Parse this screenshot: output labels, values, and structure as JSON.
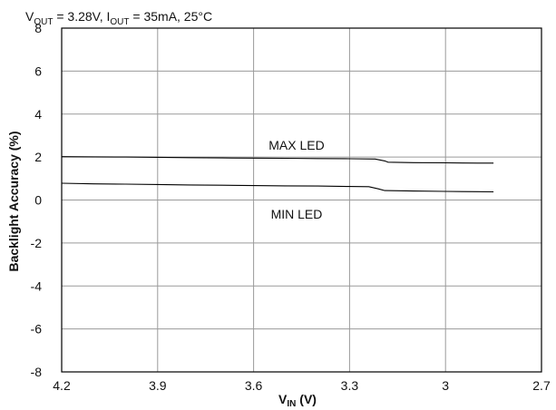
{
  "chart_data": {
    "type": "line",
    "title_parts": {
      "v": "V",
      "v_sub": "OUT",
      "v_rest": " = 3.28V, I",
      "i_sub": "OUT",
      "i_rest": " = 35mA, 25°C"
    },
    "xlabel_parts": {
      "main": "V",
      "sub": "IN",
      "unit": " (V)"
    },
    "ylabel": "Backlight Accuracy (%)",
    "xlim": [
      4.2,
      2.7
    ],
    "ylim": [
      -8,
      8
    ],
    "xticks": [
      "4.2",
      "3.9",
      "3.6",
      "3.3",
      "3",
      "2.7"
    ],
    "yticks": [
      "8",
      "6",
      "4",
      "2",
      "0",
      "-2",
      "-4",
      "-6",
      "-8"
    ],
    "grid": true,
    "series": [
      {
        "name": "MAX LED",
        "x": [
          4.2,
          4.1,
          4.0,
          3.9,
          3.8,
          3.7,
          3.6,
          3.5,
          3.4,
          3.3,
          3.22,
          3.19,
          3.18,
          3.1,
          3.0,
          2.9,
          2.85
        ],
        "y": [
          2.02,
          2.01,
          2.0,
          1.99,
          1.97,
          1.96,
          1.95,
          1.94,
          1.93,
          1.92,
          1.91,
          1.82,
          1.76,
          1.74,
          1.73,
          1.72,
          1.72
        ]
      },
      {
        "name": "MIN LED",
        "x": [
          4.2,
          4.1,
          4.0,
          3.9,
          3.8,
          3.7,
          3.6,
          3.5,
          3.4,
          3.3,
          3.24,
          3.21,
          3.19,
          3.1,
          3.0,
          2.9,
          2.85
        ],
        "y": [
          0.78,
          0.75,
          0.74,
          0.72,
          0.7,
          0.69,
          0.67,
          0.66,
          0.65,
          0.63,
          0.62,
          0.52,
          0.44,
          0.42,
          0.4,
          0.39,
          0.38
        ]
      }
    ],
    "annotations": {
      "max_label": "MAX LED",
      "min_label": "MIN LED"
    }
  }
}
